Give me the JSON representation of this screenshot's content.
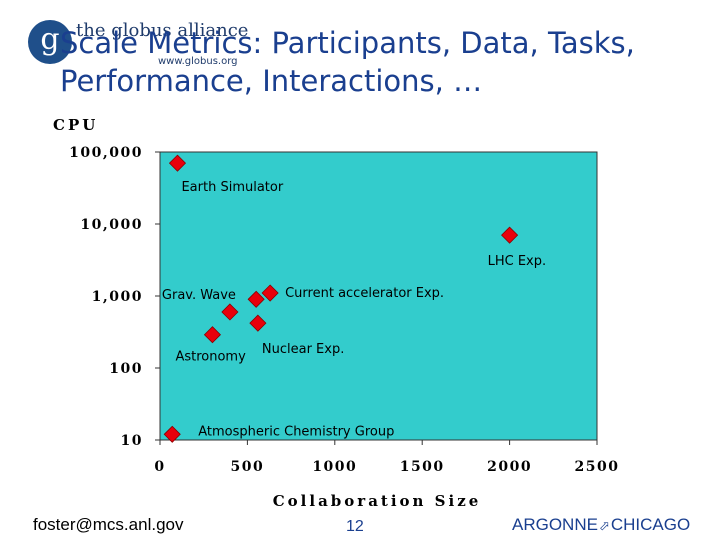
{
  "logo": {
    "glyph": "g",
    "name": "the globus alliance",
    "url": "www.globus.org"
  },
  "title": "Scale Metrics: Participants, Data, Tasks, Performance, Interactions, …",
  "footer": {
    "email": "foster@mcs.anl.gov",
    "page": "12",
    "org_left": "ARGONNE",
    "org_sep": "⬀",
    "org_right": "CHICAGO"
  },
  "colors": {
    "plot_bg": "#33cccc",
    "marker": "#e8000b",
    "title": "#1a3f8f"
  },
  "chart_data": {
    "type": "scatter",
    "title": "",
    "xlabel": "Collaboration Size",
    "ylabel": "CPU",
    "xlim": [
      0,
      2500
    ],
    "ylim": [
      10,
      100000
    ],
    "yscale": "log",
    "xticks": [
      0,
      500,
      1000,
      1500,
      2000,
      2500
    ],
    "xtick_labels": [
      "0",
      "500",
      "1000",
      "1500",
      "2000",
      "2500"
    ],
    "yticks": [
      10,
      100,
      1000,
      10000,
      100000
    ],
    "ytick_labels": [
      "10",
      "100",
      "1,000",
      "10,000",
      "100,000"
    ],
    "grid": false,
    "points": [
      {
        "label": "Earth Simulator",
        "x": 100,
        "y": 70000
      },
      {
        "label": "LHC Exp.",
        "x": 2000,
        "y": 7000
      },
      {
        "label": "Current accelerator Exp.",
        "x": 630,
        "y": 1100
      },
      {
        "label": "",
        "x": 550,
        "y": 900
      },
      {
        "label": "Grav. Wave",
        "x": 400,
        "y": 600
      },
      {
        "label": "Nuclear Exp.",
        "x": 560,
        "y": 420
      },
      {
        "label": "Astronomy",
        "x": 300,
        "y": 290
      },
      {
        "label": "Atmospheric Chemistry Group",
        "x": 70,
        "y": 12
      }
    ]
  }
}
